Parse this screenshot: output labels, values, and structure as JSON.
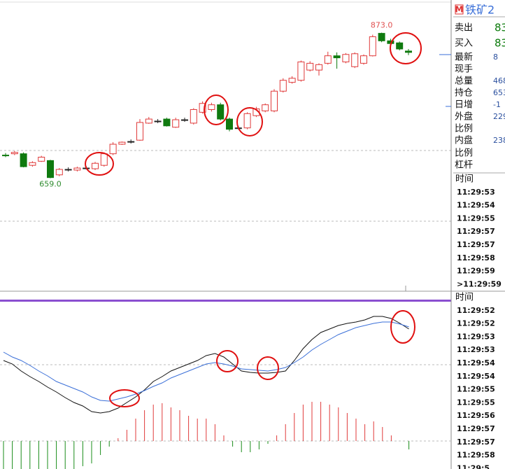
{
  "quote_panel": {
    "symbol_badge": "M",
    "symbol": "铁矿2",
    "rows": [
      {
        "label": "卖出",
        "value": "83"
      },
      {
        "label": "买入",
        "value": "83"
      },
      {
        "label": "最新",
        "value": "8"
      },
      {
        "label": "现手"
      },
      {
        "label": "总量",
        "value": "468"
      },
      {
        "label": "持仓",
        "value": "653"
      },
      {
        "label": "日增",
        "value": "-1"
      },
      {
        "label": "外盘",
        "value": "229"
      },
      {
        "label": "比例"
      },
      {
        "label": "内盘",
        "value": "238"
      },
      {
        "label": "比例"
      },
      {
        "label": "杠杆"
      }
    ]
  },
  "trades_top": {
    "header": "时间",
    "times": [
      "11:29:53",
      "11:29:54",
      "11:29:55",
      "11:29:57",
      "11:29:57",
      "11:29:58",
      "11:29:59",
      ">11:29:59"
    ]
  },
  "trades_bottom": {
    "header": "时间",
    "times": [
      "11:29:52",
      "11:29:52",
      "11:29:53",
      "11:29:53",
      "11:29:54",
      "11:29:54",
      "11:29:55",
      "11:29:55",
      "11:29:56",
      "11:29:57",
      "11:29:57",
      "11:29:58",
      "11:29:5"
    ]
  },
  "chart_data": [
    {
      "type": "candlestick",
      "up_color": "#e03a3a",
      "down_color": "#0f7a0f",
      "flat_color": "#222222",
      "ylim": [
        494,
        921
      ],
      "open": [
        693,
        695,
        695,
        678,
        684,
        685,
        664,
        672,
        671,
        674,
        673,
        678,
        695,
        709,
        713,
        715,
        740,
        743,
        746,
        734,
        745,
        740,
        756,
        760,
        767,
        746,
        733,
        733,
        751,
        758,
        758,
        787,
        800,
        803,
        818,
        818,
        828,
        839,
        830,
        823,
        828,
        839,
        872,
        861,
        858,
        846
      ],
      "close": [
        693,
        697,
        676,
        682,
        690,
        660,
        672,
        672,
        674,
        674,
        681,
        695,
        709,
        712,
        713,
        741,
        746,
        743,
        736,
        745,
        745,
        760,
        769,
        767,
        746,
        731,
        733,
        754,
        761,
        767,
        787,
        803,
        806,
        830,
        828,
        826,
        839,
        836,
        841,
        842,
        839,
        867,
        861,
        857,
        849,
        844
      ],
      "high": [
        696,
        699,
        697,
        684,
        692,
        686,
        674,
        675,
        676,
        677,
        683,
        697,
        712,
        713,
        716,
        746,
        749,
        746,
        748,
        748,
        748,
        762,
        772,
        770,
        770,
        748,
        736,
        756,
        764,
        769,
        790,
        806,
        809,
        832,
        831,
        828,
        845,
        844,
        843,
        844,
        841,
        870,
        873,
        864,
        860,
        849
      ],
      "low": [
        690,
        693,
        675,
        676,
        683,
        659,
        662,
        669,
        669,
        672,
        671,
        676,
        693,
        708,
        710,
        714,
        739,
        740,
        735,
        733,
        742,
        738,
        754,
        757,
        744,
        728,
        731,
        731,
        749,
        756,
        756,
        785,
        798,
        801,
        816,
        810,
        826,
        820,
        828,
        821,
        826,
        838,
        859,
        855,
        847,
        840
      ],
      "annotations": [
        {
          "value": 873,
          "label": "873.0",
          "color": "#e05050"
        },
        {
          "value": 659,
          "label": "659.0",
          "color": "#2e8b2e"
        }
      ]
    },
    {
      "type": "macd",
      "ylim": [
        -10,
        50
      ],
      "dif_color": "#111111",
      "dea_color": "#3a6fd8",
      "up_color": "#e03a3a",
      "down_color": "#1a8c1a",
      "dif": [
        28.75,
        27.5,
        25,
        23,
        21.25,
        19.25,
        17.5,
        15.5,
        13.75,
        12.5,
        10.5,
        10,
        10.5,
        11.75,
        13.75,
        15.75,
        18.25,
        21.25,
        23,
        25,
        26.25,
        27.5,
        28.75,
        30.5,
        31.25,
        30,
        27.5,
        25,
        24.5,
        24.25,
        24.25,
        24.5,
        25,
        28.75,
        33,
        36.25,
        38.75,
        40,
        41.25,
        42,
        42.5,
        43.25,
        44.5,
        44.5,
        43.75,
        42,
        40
      ],
      "dea": [
        31.75,
        30,
        28.75,
        27,
        25,
        23.25,
        21.25,
        20,
        18.75,
        17.5,
        15.75,
        14.5,
        14.25,
        15,
        15.75,
        16.75,
        18,
        19.5,
        20.75,
        22.5,
        23.75,
        25,
        26.25,
        27.5,
        28,
        27.5,
        26.75,
        25.75,
        25.5,
        25.25,
        25,
        25.5,
        26.25,
        28,
        30,
        32.5,
        34.5,
        36.25,
        38,
        39.25,
        40.5,
        41.25,
        42,
        42.5,
        42.5,
        41.75,
        40.75
      ],
      "hist": [
        -10,
        -10,
        -10,
        -10,
        -10,
        -10,
        -10,
        -10,
        -10,
        -9,
        -8,
        -5,
        -2,
        1,
        4,
        8,
        11,
        13,
        13.5,
        12,
        11,
        9,
        8,
        8,
        6,
        2,
        -2,
        -4,
        -4,
        -3,
        -1,
        2,
        6,
        10,
        13,
        14,
        14,
        13,
        12,
        10,
        8,
        6,
        7,
        5,
        2,
        0,
        -3
      ]
    }
  ]
}
